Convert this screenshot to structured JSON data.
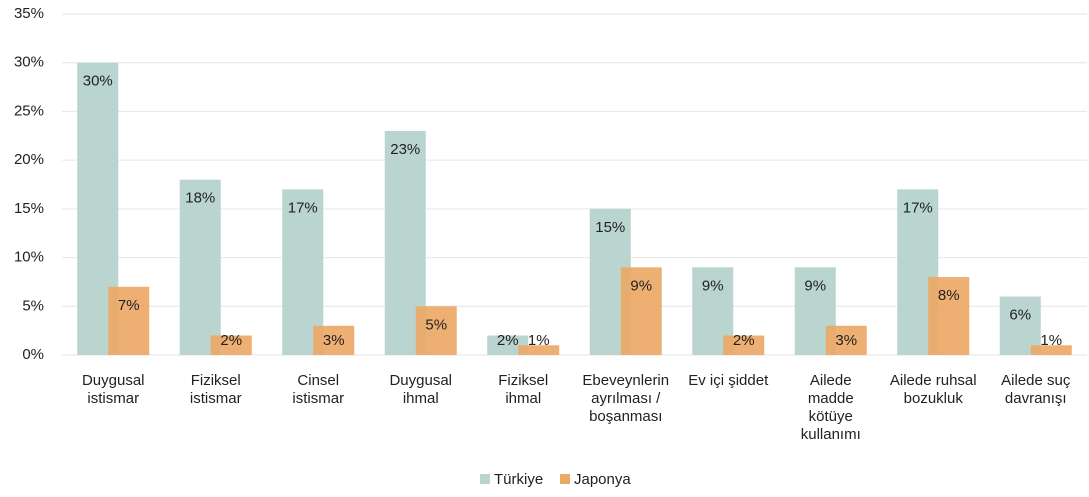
{
  "chart_data": {
    "type": "bar",
    "categories": [
      "Duygusal\nistismar",
      "Fiziksel\nistismar",
      "Cinsel\nistismar",
      "Duygusal\nihmal",
      "Fiziksel\nihmal",
      "Ebeveynlerin\nayrılması /\nboşanması",
      "Ev içi şiddet",
      "Ailede\nmadde\nkötüye\nkullanımı",
      "Ailede ruhsal\nbozukluk",
      "Ailede suç\ndavranışı"
    ],
    "series": [
      {
        "name": "Türkiye",
        "color": "#bad4cf",
        "values": [
          30,
          18,
          17,
          23,
          2,
          15,
          9,
          9,
          17,
          6
        ],
        "value_labels": [
          "30%",
          "18%",
          "17%",
          "23%",
          "2%",
          "15%",
          "9%",
          "9%",
          "17%",
          "6%"
        ]
      },
      {
        "name": "Japonya",
        "color": "#eca866",
        "values": [
          7,
          2,
          3,
          5,
          1,
          9,
          2,
          3,
          8,
          1
        ],
        "value_labels": [
          "7%",
          "2%",
          "3%",
          "5%",
          "1%",
          "9%",
          "2%",
          "3%",
          "8%",
          "1%"
        ]
      }
    ],
    "ylim": [
      0,
      35
    ],
    "yticks": [
      {
        "value": 0,
        "label": "0%"
      },
      {
        "value": 5,
        "label": "5%"
      },
      {
        "value": 10,
        "label": "10%"
      },
      {
        "value": 15,
        "label": "15%"
      },
      {
        "value": 20,
        "label": "20%"
      },
      {
        "value": 25,
        "label": "25%"
      },
      {
        "value": 30,
        "label": "30%"
      },
      {
        "value": 35,
        "label": "35%"
      }
    ],
    "grid": true,
    "legend": "bottom"
  }
}
